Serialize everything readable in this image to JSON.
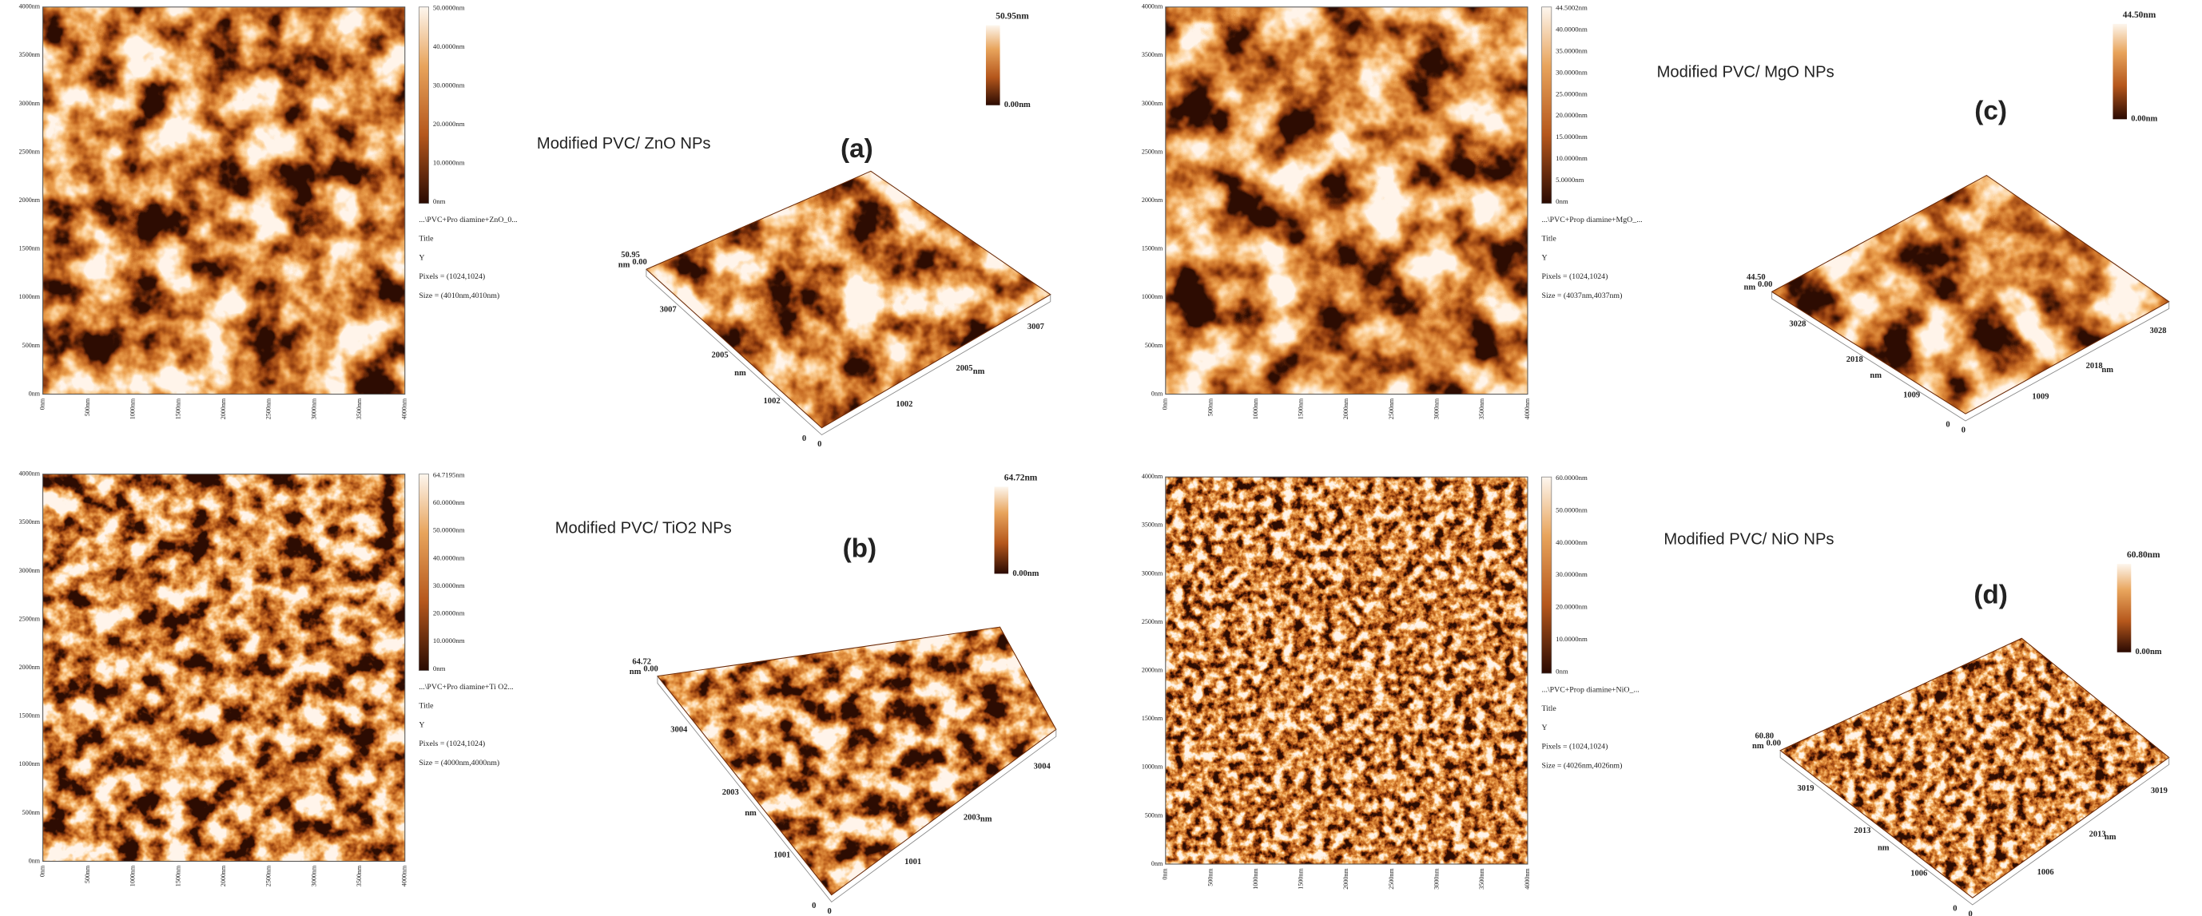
{
  "image_ticks": [
    "0nm",
    "500nm",
    "1000nm",
    "1500nm",
    "2000nm",
    "2500nm",
    "3000nm",
    "3500nm",
    "4000nm"
  ],
  "panels": [
    {
      "title": "Modified PVC/ ZnO NPs",
      "letter": "(a)",
      "scale_labels": [
        "50.0000nm",
        "40.0000nm",
        "30.0000nm",
        "20.0000nm",
        "10.0000nm",
        "0nm"
      ],
      "info": [
        "...\\PVC+Pro diamine+ZnO_0...",
        "Title",
        "Y",
        "Pixels = (1024,1024)",
        "Size = (4010nm,4010nm)"
      ],
      "bar3d": [
        "50.95nm",
        "0.00nm"
      ],
      "axis3d": {
        "z": [
          "50.95",
          "nm",
          "0.00"
        ],
        "left": [
          "3007",
          "2005",
          "nm",
          "1002",
          "0"
        ],
        "right": [
          "0",
          "1002",
          "2005",
          "nm",
          "3007"
        ]
      }
    },
    {
      "title": "Modified PVC/ TiO2 NPs",
      "letter": "(b)",
      "scale_labels": [
        "64.7195nm",
        "60.0000nm",
        "50.0000nm",
        "40.0000nm",
        "30.0000nm",
        "20.0000nm",
        "10.0000nm",
        "0nm"
      ],
      "info": [
        "...\\PVC+Pro diamine+Ti O2...",
        "Title",
        "Y",
        "Pixels = (1024,1024)",
        "Size = (4000nm,4000nm)"
      ],
      "bar3d": [
        "64.72nm",
        "0.00nm"
      ],
      "axis3d": {
        "z": [
          "64.72",
          "nm",
          "0.00"
        ],
        "left": [
          "3004",
          "2003",
          "nm",
          "1001",
          "0"
        ],
        "right": [
          "0",
          "1001",
          "2003",
          "nm",
          "3004"
        ]
      }
    },
    {
      "title": "Modified PVC/ MgO NPs",
      "letter": "(c)",
      "scale_labels": [
        "44.5002nm",
        "40.0000nm",
        "35.0000nm",
        "30.0000nm",
        "25.0000nm",
        "20.0000nm",
        "15.0000nm",
        "10.0000nm",
        "5.0000nm",
        "0nm"
      ],
      "info": [
        "...\\PVC+Prop diamine+MgO_...",
        "Title",
        "Y",
        "Pixels = (1024,1024)",
        "Size = (4037nm,4037nm)"
      ],
      "bar3d": [
        "44.50nm",
        "0.00nm"
      ],
      "axis3d": {
        "z": [
          "44.50",
          "nm",
          "0.00"
        ],
        "left": [
          "3028",
          "2018",
          "nm",
          "1009",
          "0"
        ],
        "right": [
          "0",
          "1009",
          "2018",
          "nm",
          "3028"
        ]
      }
    },
    {
      "title": "Modified PVC/ NiO NPs",
      "letter": "(d)",
      "scale_labels": [
        "60.0000nm",
        "50.0000nm",
        "40.0000nm",
        "30.0000nm",
        "20.0000nm",
        "10.0000nm",
        "0nm"
      ],
      "info": [
        "...\\PVC+Prop diamine+NiO_...",
        "Title",
        "Y",
        "Pixels = (1024,1024)",
        "Size = (4026nm,4026nm)"
      ],
      "bar3d": [
        "60.80nm",
        "0.00nm"
      ],
      "axis3d": {
        "z": [
          "60.80",
          "nm",
          "0.00"
        ],
        "left": [
          "3019",
          "2013",
          "nm",
          "1006",
          "0"
        ],
        "right": [
          "0",
          "1006",
          "2013",
          "nm",
          "3019"
        ]
      }
    }
  ]
}
